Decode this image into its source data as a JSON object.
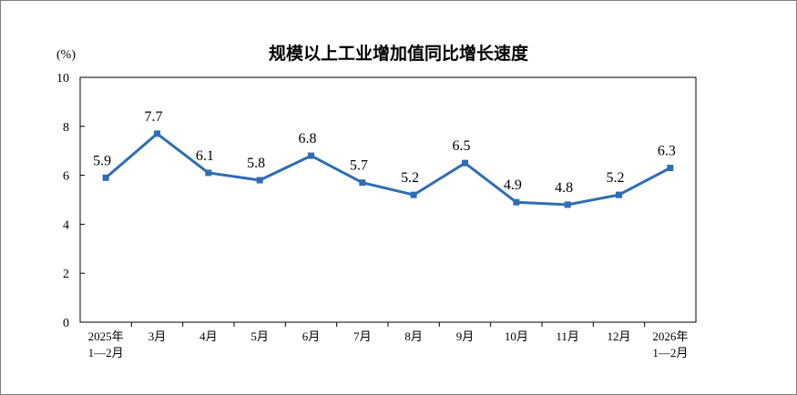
{
  "chart_data": {
    "type": "line",
    "title": "规模以上工业增加值同比增长速度",
    "unit": "(%)",
    "categories": [
      [
        "2025年",
        "1—2月"
      ],
      [
        "3月"
      ],
      [
        "4月"
      ],
      [
        "5月"
      ],
      [
        "6月"
      ],
      [
        "7月"
      ],
      [
        "8月"
      ],
      [
        "9月"
      ],
      [
        "10月"
      ],
      [
        "11月"
      ],
      [
        "12月"
      ],
      [
        "2026年",
        "1—2月"
      ]
    ],
    "values": [
      5.9,
      7.7,
      6.1,
      5.8,
      6.8,
      5.7,
      5.2,
      6.5,
      4.9,
      4.8,
      5.2,
      6.3
    ],
    "value_labels": [
      "5.9",
      "7.7",
      "6.1",
      "5.8",
      "6.8",
      "5.7",
      "5.2",
      "6.5",
      "4.9",
      "4.8",
      "5.2",
      "6.3"
    ],
    "ylim": [
      0,
      10
    ],
    "yticks": [
      "0",
      "2",
      "4",
      "6",
      "8",
      "10"
    ],
    "line_color": "#2f6db5",
    "grid": false
  }
}
